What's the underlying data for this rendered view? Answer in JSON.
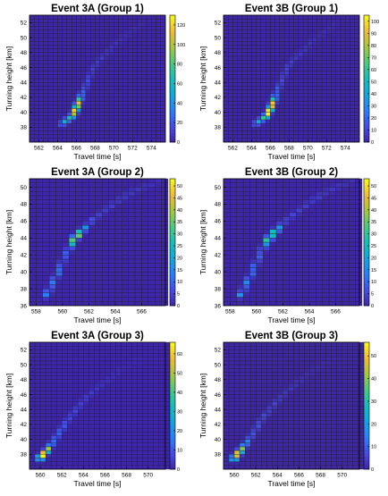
{
  "figure": {
    "colormap": "parula",
    "background_color": "#ffffff",
    "grid_line_color": "#222222"
  },
  "chart_data": [
    {
      "type": "heatmap",
      "title": "Event 3A (Group 1)",
      "xlabel": "Travel time [s]",
      "ylabel": "Turning height [km]",
      "xlim": [
        561,
        575.5
      ],
      "ylim": [
        36,
        53
      ],
      "xticks": [
        562,
        564,
        566,
        568,
        570,
        572,
        574
      ],
      "yticks": [
        38,
        40,
        42,
        44,
        46,
        48,
        50,
        52
      ],
      "cbar_max": 130,
      "cbar_ticks": [
        0,
        20,
        40,
        60,
        80,
        100,
        120
      ],
      "curve": {
        "x": [
          564.5,
          565.6,
          566.0,
          566.4,
          566.8,
          567.3,
          567.8,
          568.4,
          569.3,
          570.5,
          572.0,
          573.0
        ],
        "y": [
          38.5,
          39.5,
          40.5,
          41.8,
          43.0,
          44.5,
          46.0,
          47.0,
          48.0,
          49.5,
          51.0,
          51.8
        ]
      },
      "peak": {
        "x": 566.0,
        "y": 40.5,
        "value": 120
      },
      "spread": {
        "x": 1.3,
        "y": 1.5
      },
      "decay": 0.55
    },
    {
      "type": "heatmap",
      "title": "Event 3B (Group 1)",
      "xlabel": "Travel time [s]",
      "ylabel": "Turning height [km]",
      "xlim": [
        561,
        575.5
      ],
      "ylim": [
        36,
        53
      ],
      "xticks": [
        562,
        564,
        566,
        568,
        570,
        572,
        574
      ],
      "yticks": [
        38,
        40,
        42,
        44,
        46,
        48,
        50,
        52
      ],
      "cbar_max": 105,
      "cbar_ticks": [
        0,
        10,
        20,
        30,
        40,
        50,
        60,
        70,
        80,
        90,
        100
      ],
      "curve": {
        "x": [
          564.5,
          565.6,
          566.0,
          566.4,
          566.8,
          567.3,
          567.8,
          568.4,
          569.3,
          570.5,
          572.0,
          573.0
        ],
        "y": [
          38.5,
          39.5,
          40.5,
          41.8,
          43.0,
          44.5,
          46.0,
          47.0,
          48.0,
          49.5,
          51.0,
          51.8
        ]
      },
      "peak": {
        "x": 566.0,
        "y": 40.5,
        "value": 100
      },
      "spread": {
        "x": 1.3,
        "y": 1.5
      },
      "decay": 0.55
    },
    {
      "type": "heatmap",
      "title": "Event 3A (Group 2)",
      "xlabel": "Travel time [s]",
      "ylabel": "Turning height [km]",
      "xlim": [
        557.5,
        567.8
      ],
      "ylim": [
        36,
        51
      ],
      "xticks": [
        558,
        560,
        562,
        564,
        566
      ],
      "yticks": [
        36,
        38,
        40,
        42,
        44,
        46,
        48,
        50
      ],
      "cbar_max": 53,
      "cbar_ticks": [
        0,
        5,
        10,
        15,
        20,
        25,
        30,
        35,
        40,
        45,
        50
      ],
      "curve": {
        "x": [
          558.8,
          559.2,
          559.7,
          560.1,
          560.6,
          561.1,
          561.7,
          562.4,
          563.2,
          564.1,
          565.0,
          566.1,
          567.2
        ],
        "y": [
          37.2,
          38.5,
          40.0,
          41.5,
          43.0,
          44.3,
          45.2,
          46.3,
          47.2,
          48.3,
          49.2,
          50.0,
          50.6
        ]
      },
      "peak": {
        "x": 561.0,
        "y": 44.3,
        "value": 45
      },
      "spread": {
        "x": 1.0,
        "y": 1.0
      },
      "decay": 0.3
    },
    {
      "type": "heatmap",
      "title": "Event 3B (Group 2)",
      "xlabel": "Travel time [s]",
      "ylabel": "Turning height [km]",
      "xlim": [
        557.5,
        567.8
      ],
      "ylim": [
        36,
        51
      ],
      "xticks": [
        558,
        560,
        562,
        564,
        566
      ],
      "yticks": [
        36,
        38,
        40,
        42,
        44,
        46,
        48,
        50
      ],
      "cbar_max": 53,
      "cbar_ticks": [
        0,
        5,
        10,
        15,
        20,
        25,
        30,
        35,
        40,
        45,
        50
      ],
      "curve": {
        "x": [
          558.8,
          559.2,
          559.7,
          560.1,
          560.6,
          561.1,
          561.7,
          562.4,
          563.2,
          564.1,
          565.0,
          566.1,
          567.2
        ],
        "y": [
          37.2,
          38.5,
          40.0,
          41.5,
          43.0,
          44.3,
          45.2,
          46.3,
          47.2,
          48.3,
          49.2,
          50.0,
          50.6
        ]
      },
      "peak": {
        "x": 561.0,
        "y": 44.3,
        "value": 45
      },
      "spread": {
        "x": 1.0,
        "y": 1.0
      },
      "decay": 0.3
    },
    {
      "type": "heatmap",
      "title": "Event 3A (Group 3)",
      "xlabel": "Travel time [s]",
      "ylabel": "Turning height [km]",
      "xlim": [
        559,
        571.6
      ],
      "ylim": [
        36,
        53
      ],
      "xticks": [
        560,
        562,
        564,
        566,
        568,
        570
      ],
      "yticks": [
        38,
        40,
        42,
        44,
        46,
        48,
        50,
        52
      ],
      "cbar_max": 66,
      "cbar_ticks": [
        0,
        10,
        20,
        30,
        40,
        50,
        60
      ],
      "curve": {
        "x": [
          560.0,
          560.6,
          561.2,
          561.8,
          562.4,
          563.1,
          563.9,
          564.8,
          565.8,
          566.9,
          568.0,
          569.0
        ],
        "y": [
          37.5,
          38.5,
          39.7,
          41.0,
          42.3,
          43.6,
          45.0,
          46.3,
          47.5,
          48.7,
          49.8,
          50.6
        ]
      },
      "peak": {
        "x": 560.2,
        "y": 37.8,
        "value": 60
      },
      "spread": {
        "x": 1.0,
        "y": 1.4
      },
      "decay": 0.6
    },
    {
      "type": "heatmap",
      "title": "Event 3B (Group 3)",
      "xlabel": "Travel time [s]",
      "ylabel": "Turning height [km]",
      "xlim": [
        559,
        571.6
      ],
      "ylim": [
        36,
        53
      ],
      "xticks": [
        560,
        562,
        564,
        566,
        568,
        570
      ],
      "yticks": [
        38,
        40,
        42,
        44,
        46,
        48,
        50,
        52
      ],
      "cbar_max": 56,
      "cbar_ticks": [
        0,
        10,
        20,
        30,
        40,
        50
      ],
      "curve": {
        "x": [
          560.0,
          560.6,
          561.2,
          561.8,
          562.4,
          563.1,
          563.9,
          564.8,
          565.8,
          566.9,
          568.0,
          569.0
        ],
        "y": [
          37.5,
          38.5,
          39.7,
          41.0,
          42.3,
          43.6,
          45.0,
          46.3,
          47.5,
          48.7,
          49.8,
          50.6
        ]
      },
      "peak": {
        "x": 560.2,
        "y": 37.8,
        "value": 52
      },
      "spread": {
        "x": 1.0,
        "y": 1.4
      },
      "decay": 0.6
    }
  ]
}
